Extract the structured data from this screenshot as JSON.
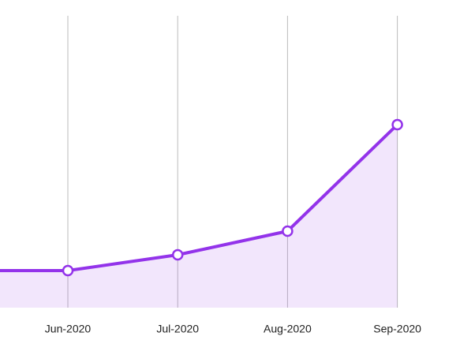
{
  "chart_data": {
    "type": "line",
    "categories": [
      null,
      "Jun-2020",
      "Jul-2020",
      "Aug-2020",
      "Sep-2020"
    ],
    "series": [
      {
        "color": "#9333ea",
        "values": [
          47,
          47,
          67,
          97,
          232
        ]
      }
    ],
    "ylim": [
      0,
      370
    ],
    "grid": true
  }
}
